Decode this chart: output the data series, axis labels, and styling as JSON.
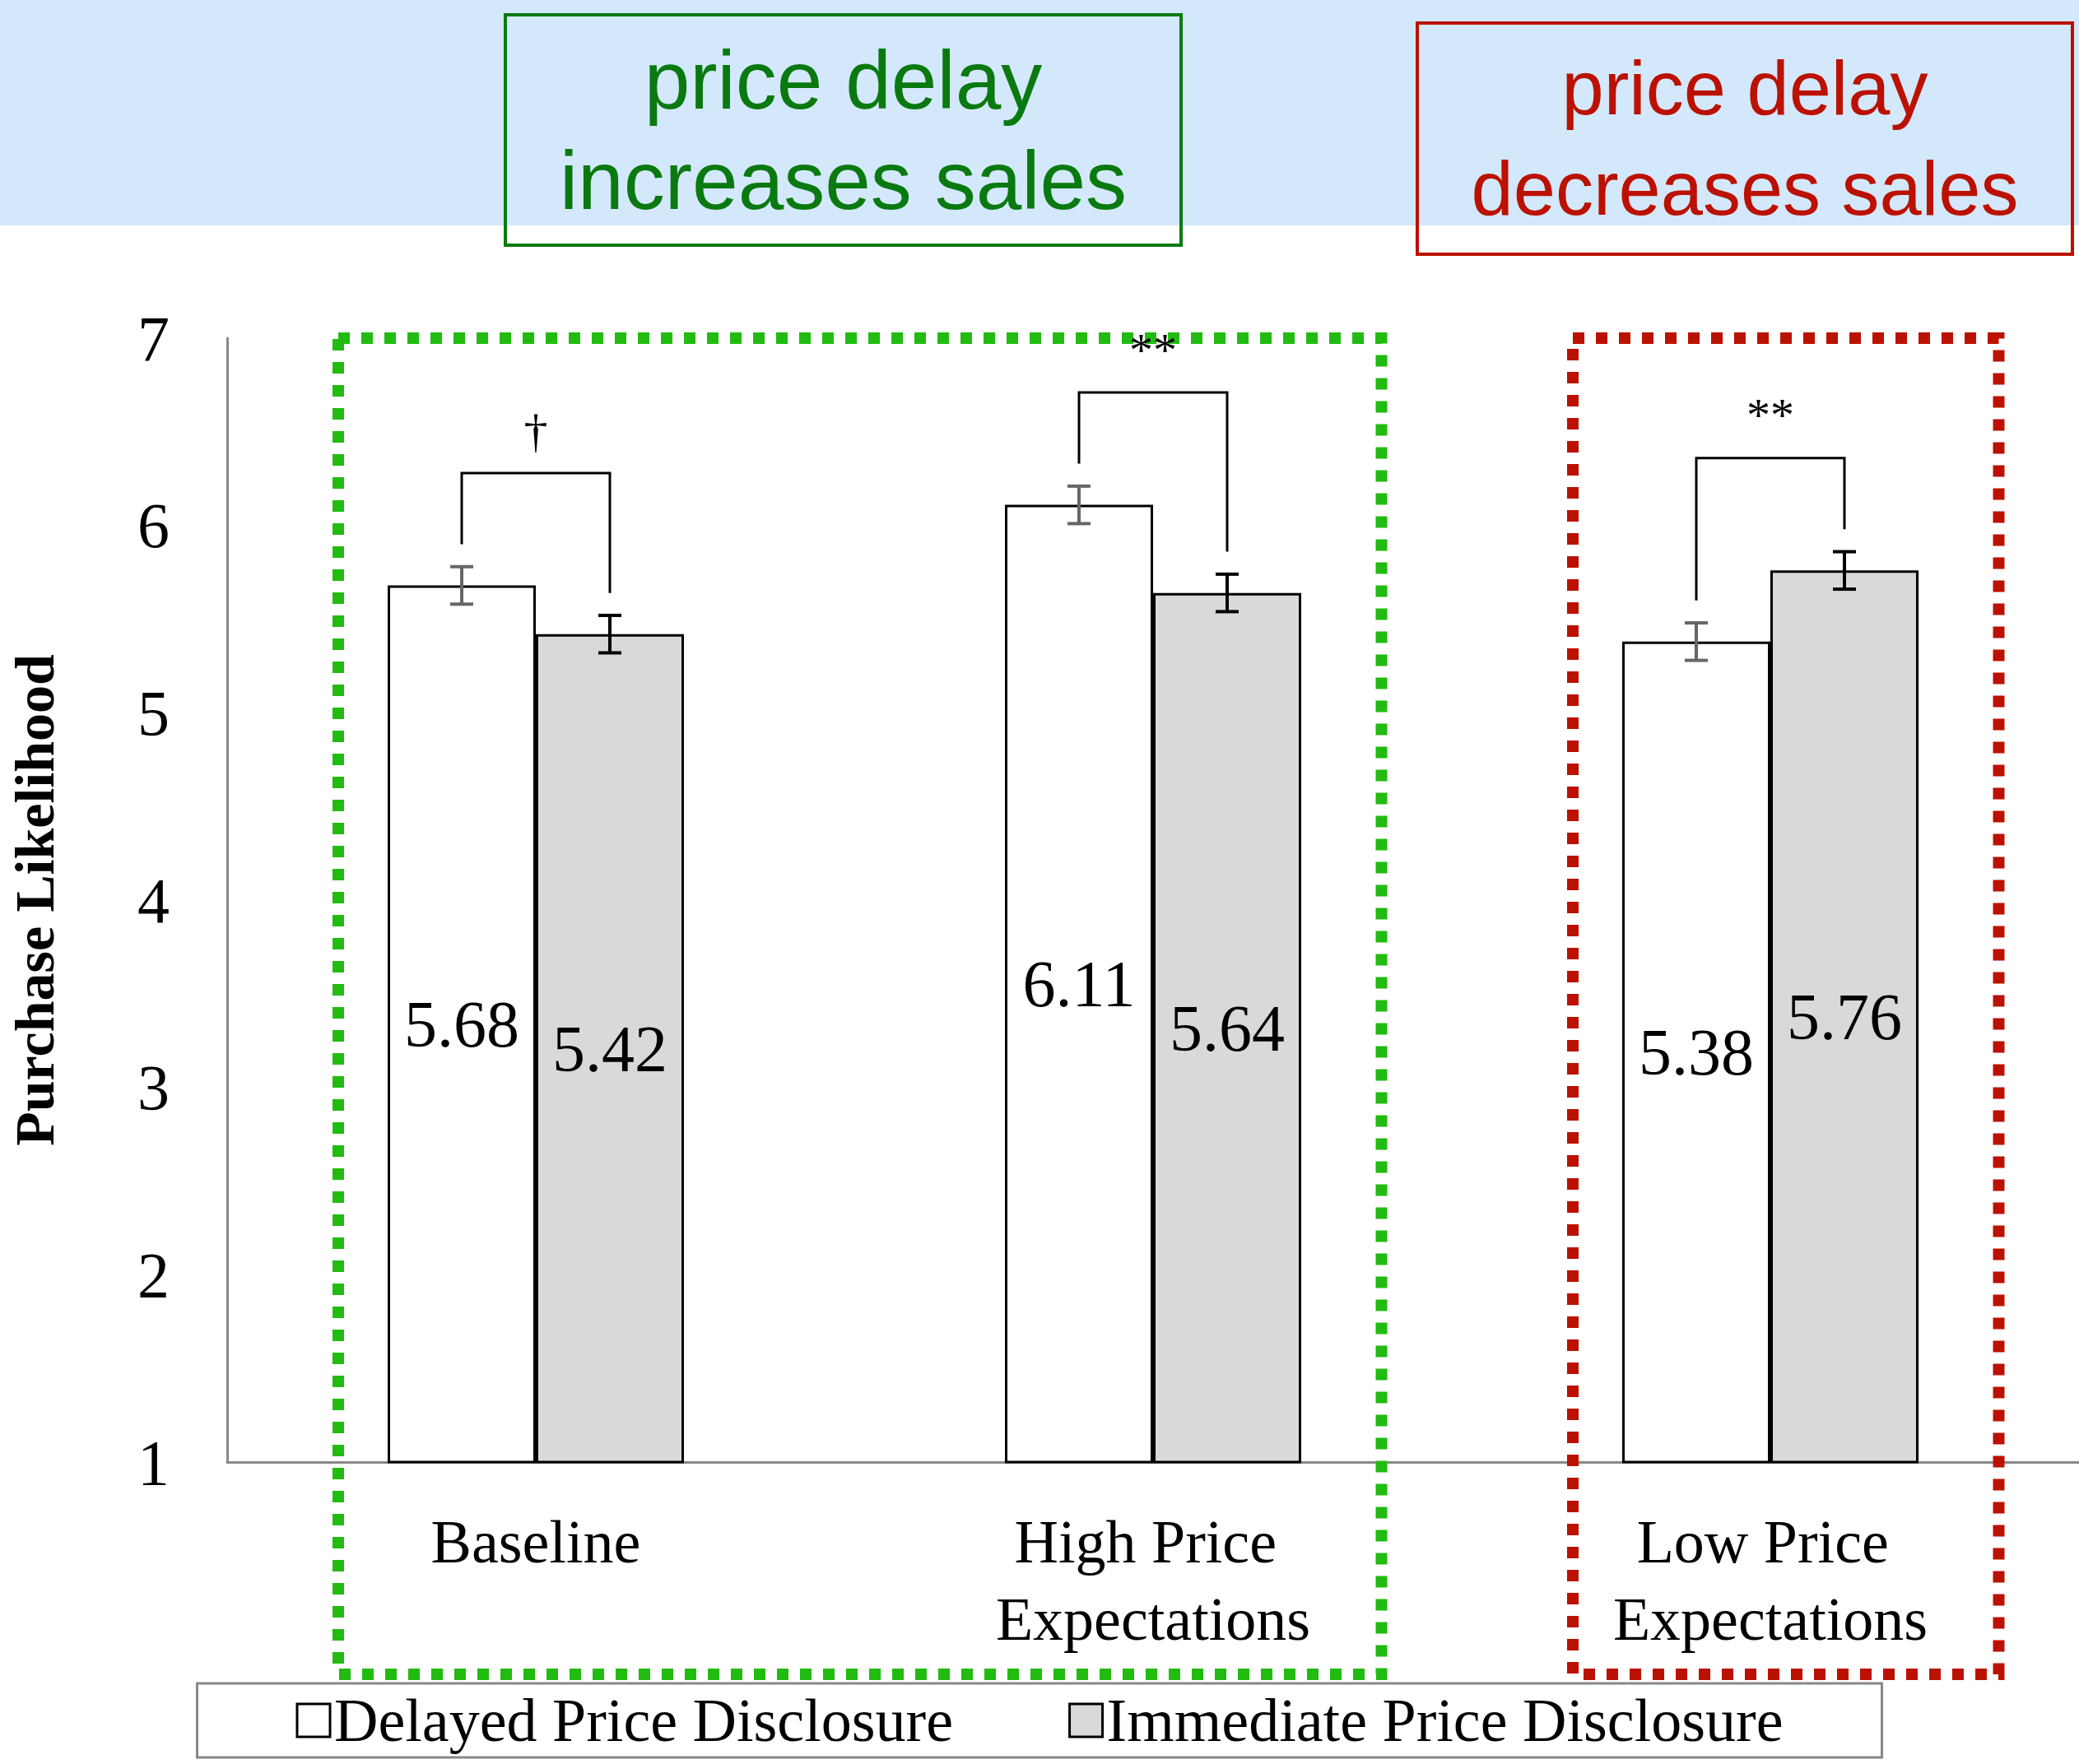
{
  "chart_data": {
    "type": "bar",
    "categories": [
      "Baseline",
      "High Price Expectations",
      "Low Price Expectations"
    ],
    "series": [
      {
        "name": "Delayed Price Disclosure",
        "color": "#ffffff",
        "values": [
          5.68,
          6.11,
          5.38
        ],
        "errors": [
          0.1,
          0.1,
          0.1
        ]
      },
      {
        "name": "Immediate Price Disclosure",
        "color": "#d9d9d9",
        "values": [
          5.42,
          5.64,
          5.76
        ],
        "errors": [
          0.1,
          0.1,
          0.1
        ]
      }
    ],
    "ylabel": "Purchase Likelihood",
    "ylim": [
      1,
      7
    ],
    "yticks": [
      1,
      2,
      3,
      4,
      5,
      6,
      7
    ],
    "data_labels": true,
    "legend": "bottom",
    "grid": false,
    "annotations": [
      "price delay increases sales",
      "price delay decreases sales",
      "†",
      "**",
      "**"
    ]
  }
}
